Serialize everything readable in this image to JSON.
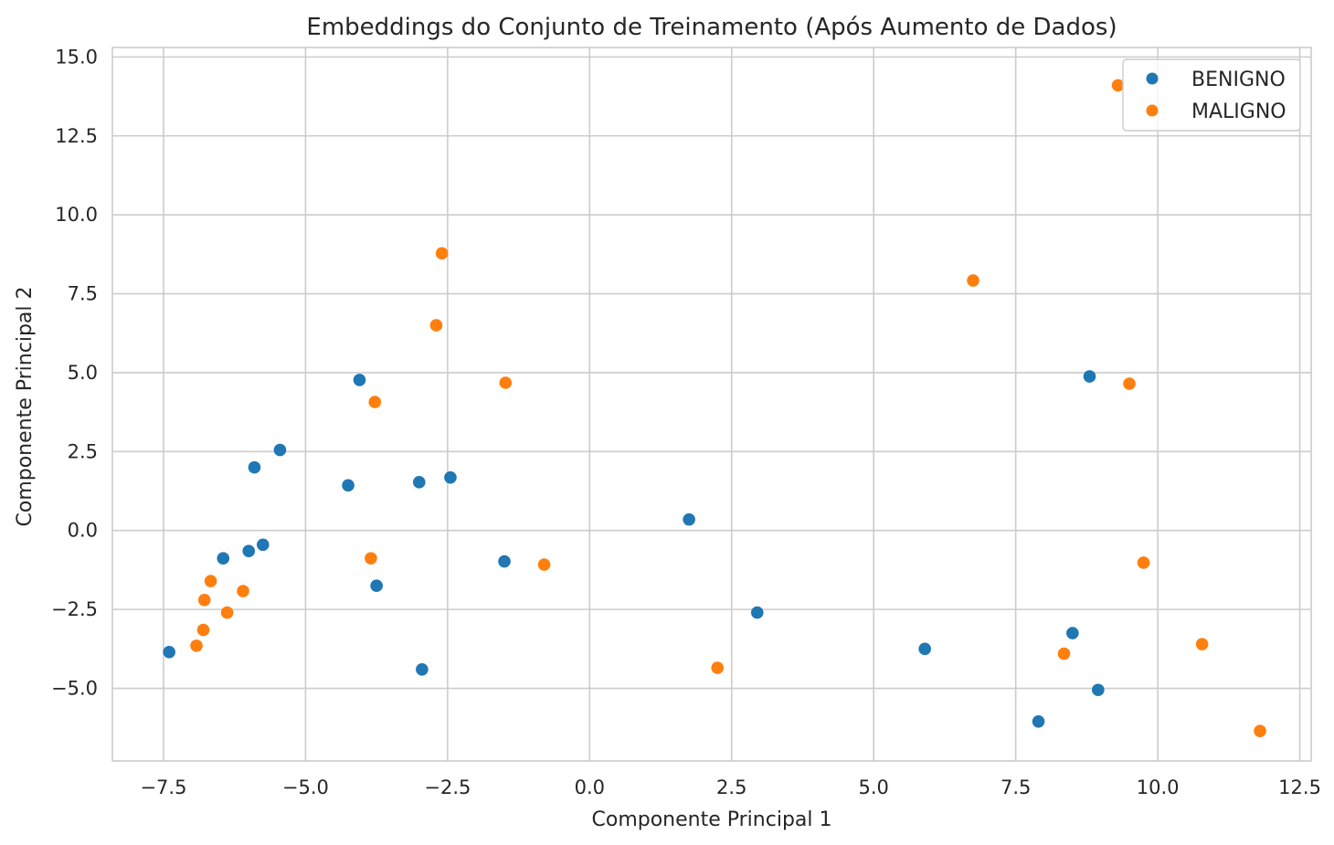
{
  "chart_data": {
    "type": "scatter",
    "title": "Embeddings do Conjunto de Treinamento (Após Aumento de Dados)",
    "xlabel": "Componente Principal 1",
    "ylabel": "Componente Principal 2",
    "xlim": [
      -8.4,
      12.7
    ],
    "ylim": [
      -7.3,
      15.3
    ],
    "xticks": [
      -7.5,
      -5.0,
      -2.5,
      0.0,
      2.5,
      5.0,
      7.5,
      10.0,
      12.5
    ],
    "xtick_labels": [
      "−7.5",
      "−5.0",
      "−2.5",
      "0.0",
      "2.5",
      "5.0",
      "7.5",
      "10.0",
      "12.5"
    ],
    "yticks": [
      -5.0,
      -2.5,
      0.0,
      2.5,
      5.0,
      7.5,
      10.0,
      12.5,
      15.0
    ],
    "ytick_labels": [
      "−5.0",
      "−2.5",
      "0.0",
      "2.5",
      "5.0",
      "7.5",
      "10.0",
      "12.5",
      "15.0"
    ],
    "grid": true,
    "legend_position": "top-right",
    "series": [
      {
        "name": "BENIGNO",
        "color": "#1f77b4",
        "points": [
          [
            -7.4,
            -3.85
          ],
          [
            -6.45,
            -0.88
          ],
          [
            -6.0,
            -0.65
          ],
          [
            -5.9,
            2.0
          ],
          [
            -5.75,
            -0.45
          ],
          [
            -5.45,
            2.55
          ],
          [
            -4.25,
            1.43
          ],
          [
            -4.05,
            4.77
          ],
          [
            -3.75,
            -1.75
          ],
          [
            -3.0,
            1.53
          ],
          [
            -2.95,
            -4.4
          ],
          [
            -2.45,
            1.68
          ],
          [
            -1.5,
            -0.98
          ],
          [
            1.75,
            0.35
          ],
          [
            2.95,
            -2.6
          ],
          [
            5.9,
            -3.75
          ],
          [
            7.9,
            -6.05
          ],
          [
            8.5,
            -3.25
          ],
          [
            8.8,
            4.88
          ],
          [
            8.95,
            -5.05
          ]
        ]
      },
      {
        "name": "MALIGNO",
        "color": "#ff7f0e",
        "points": [
          [
            -6.92,
            -3.65
          ],
          [
            -6.8,
            -3.15
          ],
          [
            -6.78,
            -2.2
          ],
          [
            -6.67,
            -1.6
          ],
          [
            -6.38,
            -2.6
          ],
          [
            -6.1,
            -1.92
          ],
          [
            -3.85,
            -0.88
          ],
          [
            -3.78,
            4.07
          ],
          [
            -2.7,
            6.5
          ],
          [
            -2.6,
            8.78
          ],
          [
            -1.48,
            4.68
          ],
          [
            -0.8,
            -1.08
          ],
          [
            2.25,
            -4.35
          ],
          [
            6.75,
            7.92
          ],
          [
            8.35,
            -3.9
          ],
          [
            9.3,
            14.1
          ],
          [
            9.5,
            4.65
          ],
          [
            9.75,
            -1.02
          ],
          [
            10.78,
            -3.6
          ],
          [
            11.8,
            -6.35
          ]
        ]
      }
    ]
  }
}
